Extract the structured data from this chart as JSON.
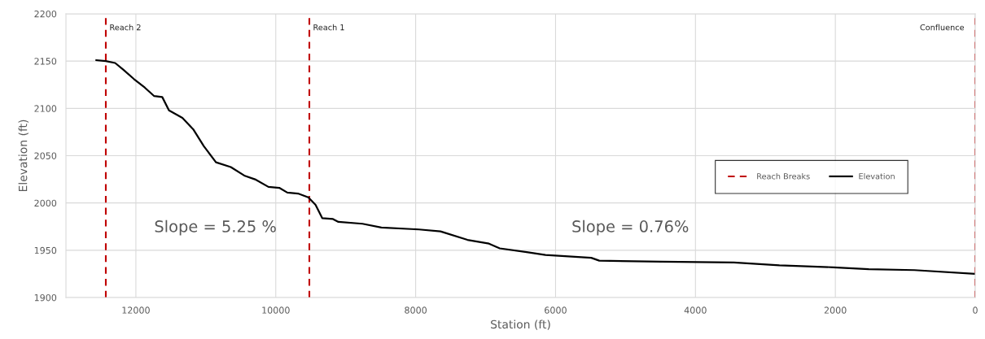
{
  "chart_data": {
    "type": "line",
    "xlabel": "Station (ft)",
    "ylabel": "Elevation (ft)",
    "xlim": [
      13000,
      0
    ],
    "xticks": [
      12000,
      10000,
      8000,
      6000,
      4000,
      2000,
      0
    ],
    "ylim": [
      1900,
      2200
    ],
    "yticks": [
      1900,
      1950,
      2000,
      2050,
      2100,
      2150,
      2200
    ],
    "grid": true,
    "legend": "right",
    "series": [
      {
        "name": "Reach Breaks",
        "color": "#c00000",
        "line_style": "dashed",
        "x": [
          12430,
          12430,
          null,
          9520,
          9520,
          null,
          0,
          0
        ],
        "values": [
          1900,
          2200,
          null,
          1900,
          2200,
          null,
          1900,
          2200
        ]
      },
      {
        "name": "Elevation",
        "color": "#000000",
        "line_style": "solid",
        "x": [
          12565,
          12430,
          12296,
          12181,
          12027,
          11873,
          11738,
          11623,
          11527,
          11335,
          11181,
          11028,
          10855,
          10643,
          10451,
          10297,
          10105,
          9950,
          9835,
          9683,
          9535,
          9431,
          9336,
          9182,
          9105,
          8760,
          8490,
          7952,
          7645,
          7260,
          6952,
          6798,
          6413,
          6144,
          5490,
          5375,
          4489,
          3452,
          2799,
          2027,
          1523,
          870,
          0
        ],
        "values": [
          2151,
          2150,
          2148,
          2141,
          2131,
          2122,
          2113,
          2112,
          2098,
          2090,
          2078,
          2060,
          2043,
          2038,
          2029,
          2025,
          2017,
          2016,
          2011,
          2010,
          2006,
          1998,
          1984,
          1983,
          1980,
          1978,
          1974,
          1972,
          1970,
          1961,
          1957,
          1952,
          1948,
          1945,
          1942,
          1939,
          1938,
          1937,
          1934,
          1932,
          1930,
          1929,
          1925
        ]
      }
    ],
    "annotations": [
      {
        "text": "Reach 2",
        "x": 12430,
        "y": 2185
      },
      {
        "text": "Reach 1",
        "x": 9520,
        "y": 2185
      },
      {
        "text": "Confluence",
        "x": 0,
        "y": 2185
      },
      "Slope = 5.25 %",
      "Slope = 0.76%"
    ]
  }
}
